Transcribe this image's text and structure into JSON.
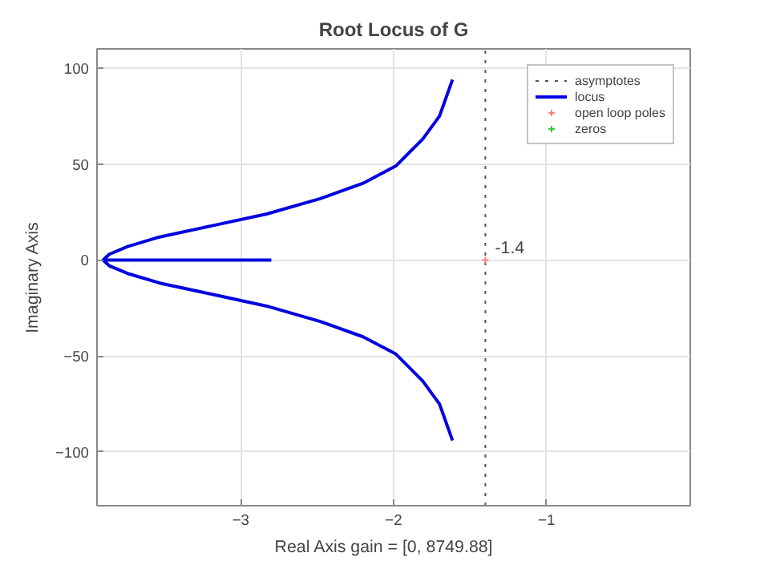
{
  "chart_data": {
    "type": "line",
    "title": "Root Locus of G",
    "xlabel": "Real Axis     gain = [0, 8749.88]",
    "ylabel": "Imaginary Axis",
    "xlim": [
      -3.94,
      -0.06
    ],
    "ylim": [
      -128,
      110
    ],
    "xticks": [
      -3,
      -2,
      -1
    ],
    "yticks": [
      -100,
      -50,
      0,
      50,
      100
    ],
    "grid": true,
    "legend": "top right",
    "series": [
      {
        "name": "asymptotes",
        "line_style": "dotted",
        "color": "#555555",
        "x": [
          -1.4,
          -1.4
        ],
        "values": [
          -128,
          110
        ]
      },
      {
        "name": "locus",
        "line_style": "solid",
        "color": "#0000e0",
        "x": [
          -1.615,
          -1.7,
          -1.81,
          -1.985,
          -2.2,
          -2.48,
          -2.83,
          -3.18,
          -3.53,
          -3.74,
          -3.86,
          -3.9,
          -3.86,
          -3.74,
          -3.53,
          -3.18,
          -2.83,
          -2.48,
          -2.2,
          -1.985,
          -1.81,
          -1.7,
          -1.615,
          null,
          -3.9,
          -2.8
        ],
        "values": [
          94,
          75,
          63,
          49,
          40,
          32,
          24,
          18,
          12,
          7,
          3,
          0,
          -3,
          -7,
          -12,
          -18,
          -24,
          -32,
          -40,
          -49,
          -63,
          -75,
          -94,
          null,
          0,
          0
        ]
      },
      {
        "name": "open loop poles",
        "type": "scatter",
        "marker": "cross",
        "color": "#ff7f7f",
        "x": [
          -1.4
        ],
        "values": [
          0
        ]
      },
      {
        "name": "zeros",
        "type": "scatter",
        "marker": "cross",
        "color": "#33cc33"
      }
    ],
    "annotations": [
      {
        "text": "-1.4",
        "x": -1.4,
        "y": 0
      }
    ]
  }
}
